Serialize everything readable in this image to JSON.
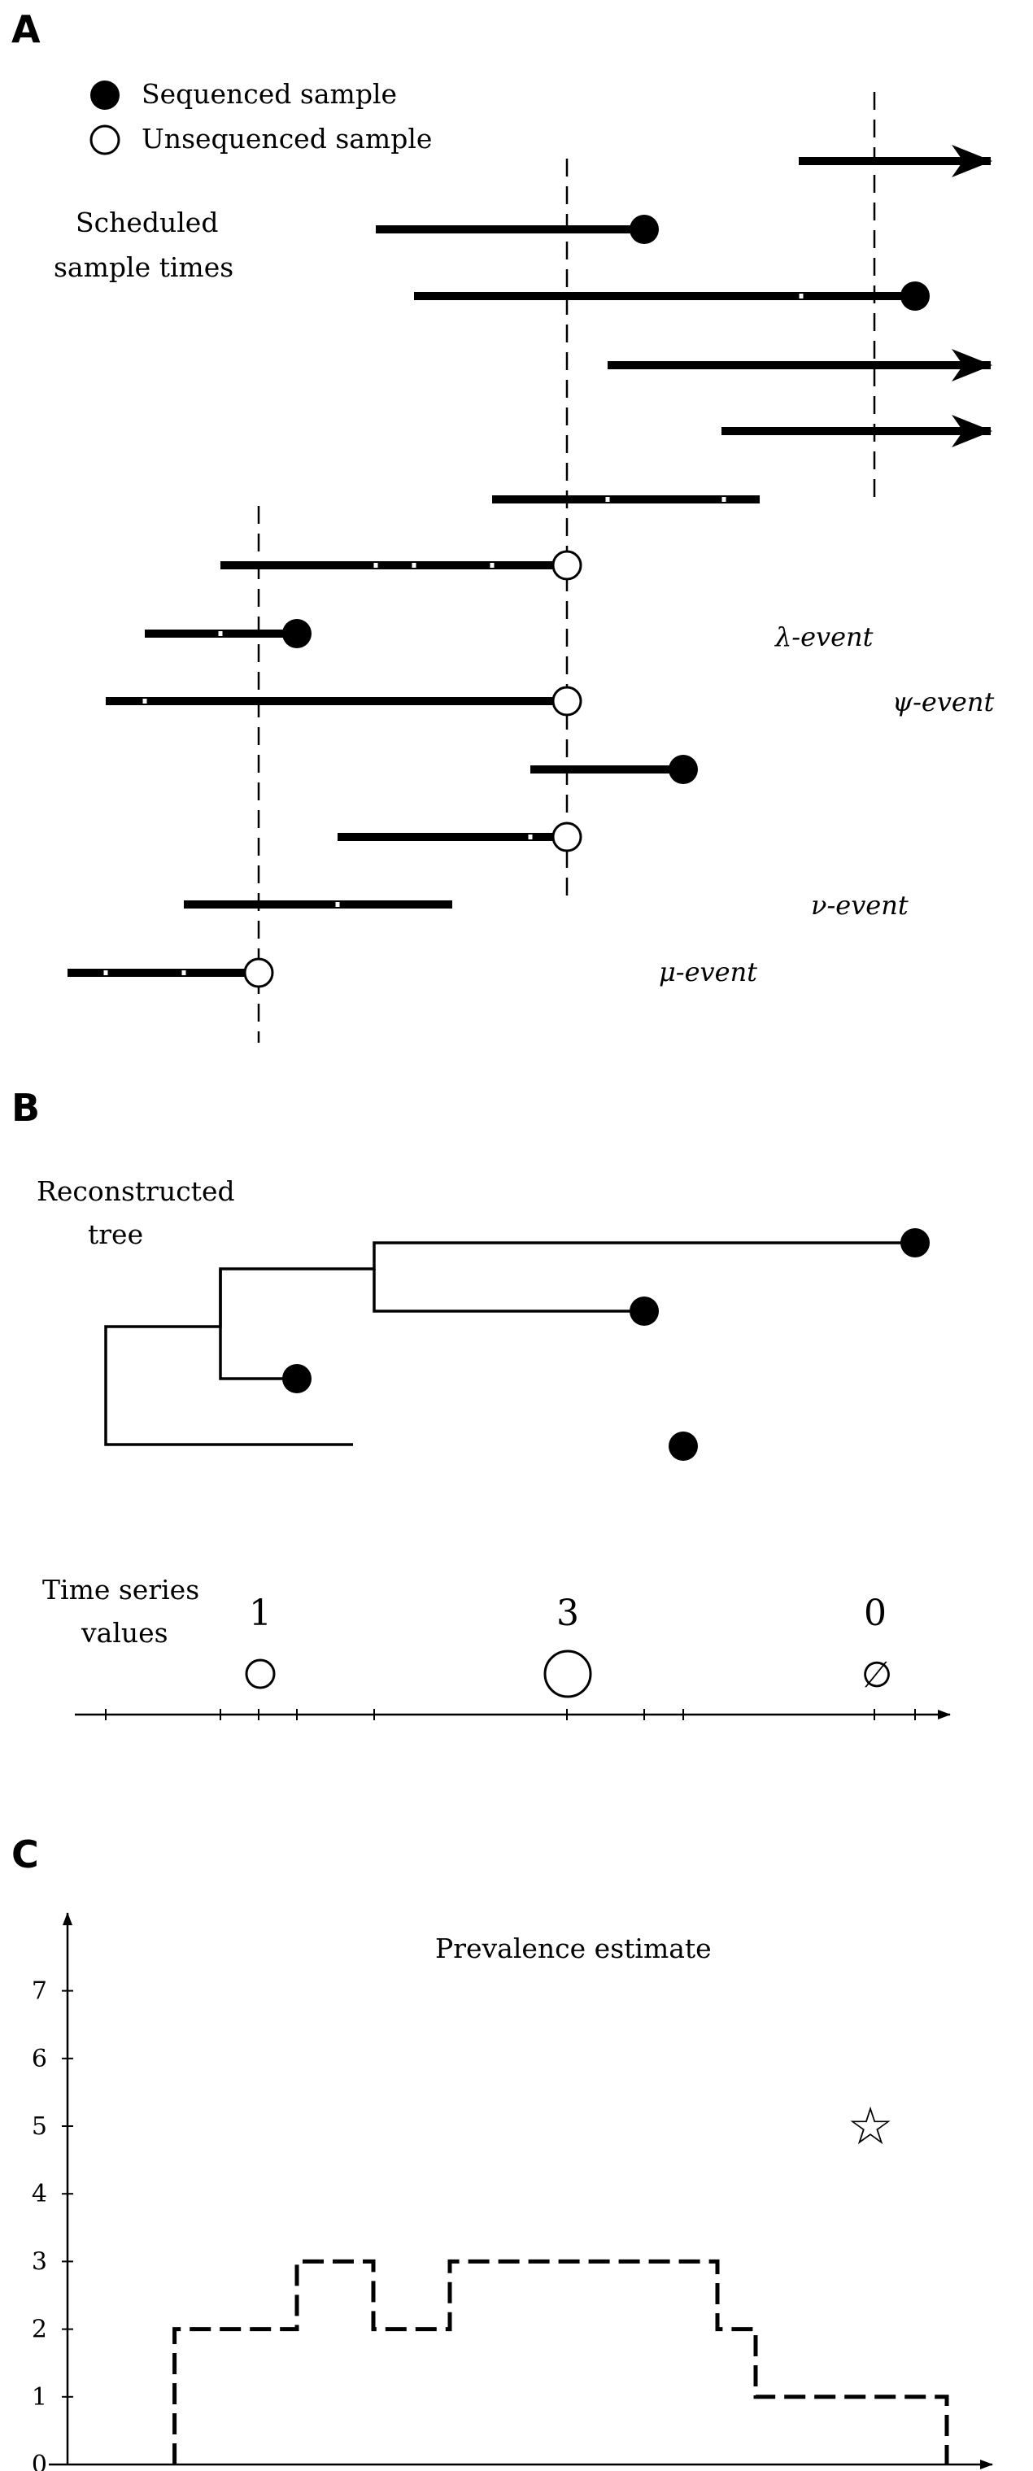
{
  "panels": {
    "a": "A",
    "b": "B",
    "c": "C"
  },
  "legend": {
    "sequenced": "Sequenced sample",
    "unsequenced": "Unsequenced sample"
  },
  "panel_a": {
    "scheduled_label": [
      "Scheduled",
      "sample times"
    ],
    "events": {
      "lambda": "λ-event",
      "psi": "ψ-event",
      "nu": "ν-event",
      "mu": "μ-event"
    }
  },
  "panel_b": {
    "tree_label": [
      "Reconstructed",
      "tree"
    ],
    "ts_label": [
      "Time series",
      "values"
    ],
    "time_series": [
      {
        "value": "1",
        "marker": "small-circle"
      },
      {
        "value": "3",
        "marker": "large-circle"
      },
      {
        "value": "0",
        "marker": "empty-set",
        "symbol": "∅"
      }
    ]
  },
  "panel_c": {
    "title": "Prevalence estimate",
    "y_ticks": [
      "0",
      "1",
      "2",
      "3",
      "4",
      "5",
      "6",
      "7"
    ],
    "star_symbol": "☆"
  },
  "chart_data": {
    "type": "line",
    "title": "Prevalence estimate",
    "series": [
      {
        "style": "dashed-step",
        "x": [
          0.7,
          1.5,
          2.0,
          2.5,
          4.25,
          4.5,
          5.75
        ],
        "y": [
          2,
          3,
          2,
          3,
          2,
          1,
          0
        ]
      }
    ],
    "markers": [
      {
        "type": "star",
        "x": 5.25,
        "y": 5
      }
    ],
    "ylim": [
      0,
      7.7
    ],
    "yticks": [
      0,
      1,
      2,
      3,
      4,
      5,
      6,
      7
    ]
  }
}
